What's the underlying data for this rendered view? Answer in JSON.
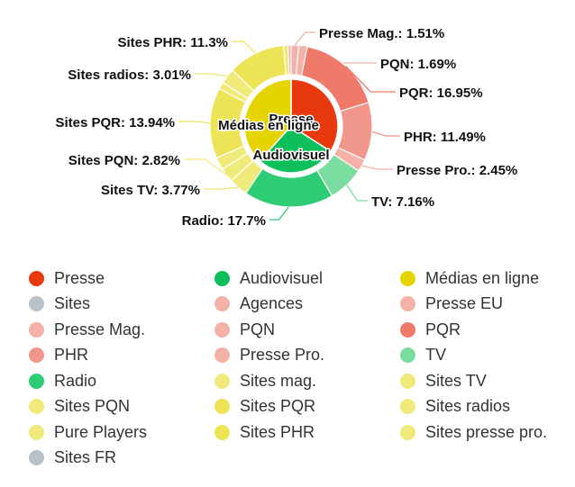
{
  "chart_data": {
    "type": "pie",
    "subtype": "two-ring sunburst",
    "inner_ring": [
      {
        "name": "Presse",
        "value": 34.09,
        "color": "#e8380d"
      },
      {
        "name": "Audiovisuel",
        "value": 27.63,
        "color": "#0cbf5b"
      },
      {
        "name": "Médias en ligne",
        "value": 38.28,
        "color": "#e6d400"
      }
    ],
    "inner_labels": [
      "Presse",
      "Audiovisuel",
      "Médias en ligne"
    ],
    "outer_ring": [
      {
        "name": "Presse Mag.",
        "value": 1.51,
        "label": "Presse Mag.: 1.51%",
        "color": "#f3b1a8",
        "labeled": true
      },
      {
        "name": "PQN",
        "value": 1.69,
        "label": "PQN: 1.69%",
        "color": "#f3b1a8",
        "labeled": true
      },
      {
        "name": "PQR",
        "value": 16.95,
        "label": "PQR: 16.95%",
        "color": "#ef7a6a",
        "labeled": true
      },
      {
        "name": "PHR",
        "value": 11.49,
        "label": "PHR: 11.49%",
        "color": "#f0968a",
        "labeled": true
      },
      {
        "name": "Presse Pro.",
        "value": 2.45,
        "label": "Presse Pro.: 2.45%",
        "color": "#f3b1a8",
        "labeled": true
      },
      {
        "name": "TV",
        "value": 7.16,
        "label": "TV: 7.16%",
        "color": "#7adc9f",
        "labeled": true
      },
      {
        "name": "Radio",
        "value": 17.7,
        "label": "Radio: 17.7%",
        "color": "#2ecc75",
        "labeled": true
      },
      {
        "name": "Sites TV",
        "value": 3.77,
        "label": "Sites TV: 3.77%",
        "color": "#f0ea7a",
        "labeled": true
      },
      {
        "name": "Sites PQN",
        "value": 2.82,
        "label": "Sites PQN: 2.82%",
        "color": "#f0ea7a",
        "labeled": true
      },
      {
        "name": "Pure Players",
        "value": 2.5,
        "color": "#f0ea7a",
        "labeled": false
      },
      {
        "name": "Sites PQR",
        "value": 13.94,
        "label": "Sites PQR: 13.94%",
        "color": "#ede455",
        "labeled": true
      },
      {
        "name": "Sites mag.",
        "value": 1.4,
        "color": "#f0ea7a",
        "labeled": false
      },
      {
        "name": "Sites radios",
        "value": 3.01,
        "label": "Sites radios: 3.01%",
        "color": "#f0ea7a",
        "labeled": true
      },
      {
        "name": "Sites PHR",
        "value": 11.3,
        "label": "Sites PHR: 11.3%",
        "color": "#ede455",
        "labeled": true
      },
      {
        "name": "Sites presse pro.",
        "value": 0.92,
        "color": "#f0ea7a",
        "labeled": false
      },
      {
        "name": "Presse EU",
        "value": 0.6,
        "color": "#f3b1a8",
        "labeled": false
      }
    ],
    "legend": {
      "placement": "bottom",
      "items": [
        {
          "label": "Presse",
          "color": "#e8380d"
        },
        {
          "label": "Audiovisuel",
          "color": "#0cbf5b"
        },
        {
          "label": "Médias en ligne",
          "color": "#e6d400"
        },
        {
          "label": "Sites",
          "color": "#b9c2c8"
        },
        {
          "label": "Agences",
          "color": "#f3b1a8"
        },
        {
          "label": "Presse EU",
          "color": "#f3b1a8"
        },
        {
          "label": "Presse Mag.",
          "color": "#f3b1a8"
        },
        {
          "label": "PQN",
          "color": "#f3b1a8"
        },
        {
          "label": "PQR",
          "color": "#ef7a6a"
        },
        {
          "label": "PHR",
          "color": "#f0968a"
        },
        {
          "label": "Presse Pro.",
          "color": "#f3b1a8"
        },
        {
          "label": "TV",
          "color": "#7adc9f"
        },
        {
          "label": "Radio",
          "color": "#2ecc75"
        },
        {
          "label": "Sites mag.",
          "color": "#f0ea7a"
        },
        {
          "label": "Sites TV",
          "color": "#f0ea7a"
        },
        {
          "label": "Sites PQN",
          "color": "#f0ea7a"
        },
        {
          "label": "Sites PQR",
          "color": "#ede455"
        },
        {
          "label": "Sites radios",
          "color": "#f0ea7a"
        },
        {
          "label": "Pure Players",
          "color": "#f0ea7a"
        },
        {
          "label": "Sites PHR",
          "color": "#ede455"
        },
        {
          "label": "Sites presse pro.",
          "color": "#f0ea7a"
        },
        {
          "label": "Sites FR",
          "color": "#b9c2c8"
        }
      ]
    }
  }
}
